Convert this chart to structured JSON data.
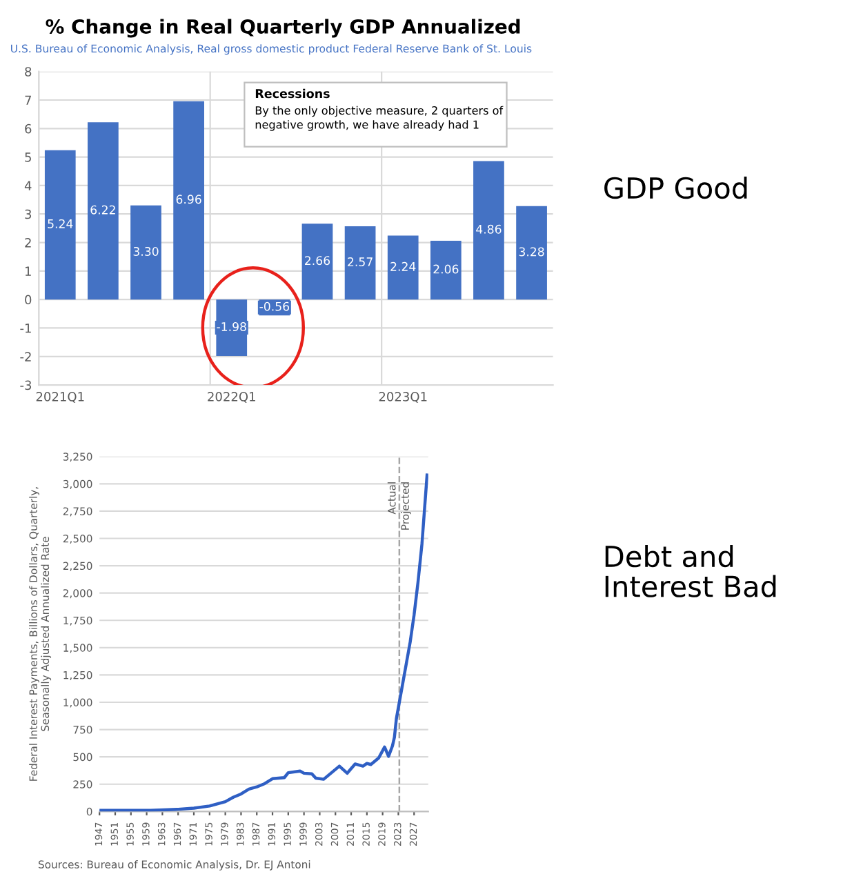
{
  "chart_data": [
    {
      "type": "bar",
      "title": "% Change in Real Quarterly GDP Annualized",
      "subtitle": "U.S. Bureau of Economic Analysis, Real gross domestic product Federal Reserve Bank of St. Louis",
      "categories": [
        "2021Q1",
        null,
        null,
        null,
        "2022Q1",
        null,
        null,
        null,
        "2023Q1",
        null,
        null,
        null
      ],
      "values": [
        5.24,
        6.22,
        3.3,
        6.96,
        -1.98,
        -0.56,
        2.66,
        2.57,
        2.24,
        2.06,
        4.86,
        3.28
      ],
      "value_labels": [
        "5.24",
        "6.22",
        "3.30",
        "6.96",
        "-1.98",
        "-0.56",
        "2.66",
        "2.57",
        "2.24",
        "2.06",
        "4.86",
        "3.28"
      ],
      "color": "#4472c4",
      "ylim": [
        -3,
        8
      ],
      "yticks": [
        -3,
        -2,
        -1,
        0,
        1,
        2,
        3,
        4,
        5,
        6,
        7,
        8
      ],
      "grid": true,
      "annotations": [
        "Recessions",
        "By the only objective measure, 2 quarters of\nnegative growth, we have already had 1",
        "GDP Good"
      ]
    },
    {
      "type": "line",
      "ylabel": "Federal Interest Payments, Billions of Dollars, Quarterly,\nSeasonally Adjusted Annualized Rate",
      "series": [
        {
          "color": "#2f5fc4",
          "x": [
            1947,
            1960,
            1967,
            1971,
            1975,
            1979,
            1981,
            1983,
            1985,
            1987,
            1989,
            1991,
            1994,
            1995,
            1998,
            1999,
            2001,
            2002,
            2004,
            2006,
            2008,
            2010,
            2012,
            2014,
            2015,
            2016,
            2018,
            2019.5,
            2020.5,
            2021.5,
            2022,
            2022.5,
            2023.25,
            2024,
            2025,
            2026,
            2027,
            2028,
            2029,
            2030.3
          ],
          "values": [
            10,
            10,
            20,
            30,
            50,
            90,
            130,
            160,
            205,
            225,
            255,
            300,
            310,
            355,
            370,
            350,
            345,
            305,
            295,
            355,
            415,
            350,
            435,
            415,
            440,
            430,
            490,
            590,
            505,
            600,
            680,
            850,
            1000,
            1150,
            1350,
            1550,
            1800,
            2100,
            2450,
            3080
          ]
        }
      ],
      "xlim": [
        1947,
        2030.6
      ],
      "xticks": [
        1947,
        1951,
        1955,
        1959,
        1963,
        1967,
        1971,
        1975,
        1979,
        1983,
        1987,
        1991,
        1995,
        1999,
        2003,
        2007,
        2011,
        2015,
        2019,
        2023,
        2027
      ],
      "ylim": [
        0,
        3250
      ],
      "yticks": [
        0,
        {
          "value": 250,
          "label": "250"
        },
        {
          "value": 500,
          "label": "500"
        },
        {
          "value": 750,
          "label": "750"
        },
        {
          "value": 1000,
          "label": "1,000"
        },
        {
          "value": 1250,
          "label": "1,250"
        },
        {
          "value": 1500,
          "label": "1,500"
        },
        {
          "value": 1750,
          "label": "1,750"
        },
        {
          "value": 2000,
          "label": "2,000"
        },
        {
          "value": 2250,
          "label": "2,250"
        },
        {
          "value": 2500,
          "label": "2,500"
        },
        {
          "value": 2750,
          "label": "2,750"
        },
        {
          "value": 3000,
          "label": "3,000"
        },
        {
          "value": 3250,
          "label": "3,250"
        }
      ],
      "grid": "y",
      "line_style": "solid",
      "ref_lines": [
        {
          "axis": "x",
          "value": 2023.25,
          "label": "Actual",
          "color": "#a6a6a6",
          "line_style": "dashed"
        }
      ],
      "annotations": [
        "Projected",
        "Sources: Bureau of Economic Analysis, Dr. EJ Antoni",
        "Debt and\nInterest Bad"
      ]
    }
  ]
}
